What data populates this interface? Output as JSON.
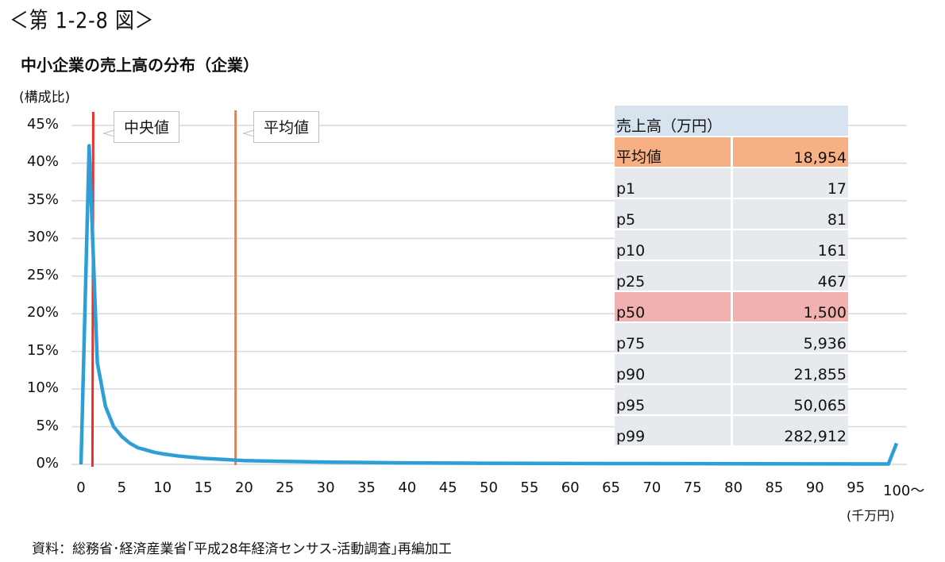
{
  "figure": {
    "label": "＜第 1-2-8 図＞",
    "title": "中小企業の売上高の分布（企業）",
    "source": "資料：総務省･経済産業省｢平成28年経済センサス‐活動調査｣再編加工"
  },
  "colors": {
    "line": "#2e9fd6",
    "median_line": "#e8312f",
    "mean_line": "#f07c3d",
    "grid": "#d9d9d9",
    "table_header_bg": "#d7e3ee",
    "table_row_bg": "#e6e9ee",
    "table_mean_bg": "#f7b084",
    "table_median_bg": "#f2b1b1"
  },
  "callouts": {
    "median": "中央値",
    "mean": "平均値"
  },
  "table": {
    "header": "売上高（万円）",
    "rows": [
      {
        "key": "平均値",
        "value": "18,954",
        "style": "mean"
      },
      {
        "key": "p1",
        "value": "17",
        "style": "row"
      },
      {
        "key": "p5",
        "value": "81",
        "style": "row"
      },
      {
        "key": "p10",
        "value": "161",
        "style": "row"
      },
      {
        "key": "p25",
        "value": "467",
        "style": "row"
      },
      {
        "key": "p50",
        "value": "1,500",
        "style": "median"
      },
      {
        "key": "p75",
        "value": "5,936",
        "style": "row"
      },
      {
        "key": "p90",
        "value": "21,855",
        "style": "row"
      },
      {
        "key": "p95",
        "value": "50,065",
        "style": "row"
      },
      {
        "key": "p99",
        "value": "282,912",
        "style": "row"
      }
    ]
  },
  "chart_data": {
    "type": "line",
    "title": "中小企業の売上高の分布（企業）",
    "xlabel": "(千万円)",
    "ylabel": "(構成比)",
    "ylim": [
      0,
      45
    ],
    "xlim": [
      0,
      100
    ],
    "grid": true,
    "y_ticks": [
      "0%",
      "5%",
      "10%",
      "15%",
      "20%",
      "25%",
      "30%",
      "35%",
      "40%",
      "45%"
    ],
    "x_ticks": [
      "0",
      "5",
      "10",
      "15",
      "20",
      "25",
      "30",
      "35",
      "40",
      "45",
      "50",
      "55",
      "60",
      "65",
      "70",
      "75",
      "80",
      "85",
      "90",
      "95",
      "100～"
    ],
    "series": [
      {
        "name": "構成比",
        "x": [
          0,
          1,
          2,
          3,
          4,
          5,
          6,
          7,
          8,
          9,
          10,
          12,
          15,
          20,
          25,
          30,
          40,
          50,
          60,
          70,
          80,
          90,
          99,
          100
        ],
        "values": [
          0.0,
          42.3,
          13.5,
          7.7,
          5.0,
          3.7,
          2.8,
          2.2,
          1.9,
          1.6,
          1.4,
          1.1,
          0.8,
          0.5,
          0.4,
          0.3,
          0.2,
          0.15,
          0.12,
          0.1,
          0.08,
          0.07,
          0.05,
          2.8
        ]
      }
    ],
    "reference_lines": [
      {
        "name": "中央値",
        "x": 1.5,
        "color": "#e8312f"
      },
      {
        "name": "平均値",
        "x": 18.954,
        "color": "#f07c3d"
      }
    ]
  }
}
